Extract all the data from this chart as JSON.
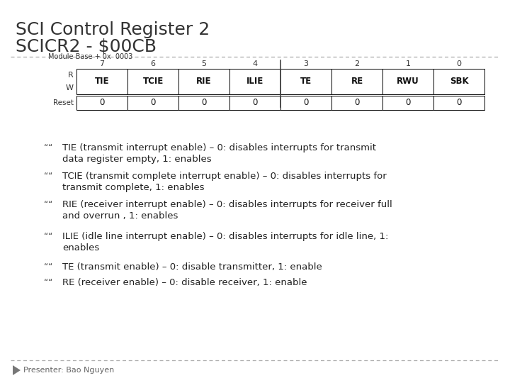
{
  "title_line1": "SCI Control Register 2",
  "title_line2": "SCICR2 - $00CB",
  "bg_color": "#ffffff",
  "title_color": "#333333",
  "register_label": "Module Base + 0x  0003",
  "bit_numbers": [
    "7",
    "6",
    "5",
    "4",
    "3",
    "2",
    "1",
    "0"
  ],
  "bit_fields": [
    "TIE",
    "TCIE",
    "RIE",
    "ILIE",
    "TE",
    "RE",
    "RWU",
    "SBK"
  ],
  "reset_values": [
    "0",
    "0",
    "0",
    "0",
    "0",
    "0",
    "0",
    "0"
  ],
  "bullet_lines": [
    [
      "TIE (transmit interrupt enable) – 0: disables interrupts for transmit",
      "data register empty, 1: enables"
    ],
    [
      "TCIE (transmit complete interrupt enable) – 0: disables interrupts for",
      "transmit complete, 1: enables"
    ],
    [
      "RIE (receiver interrupt enable) – 0: disables interrupts for receiver full",
      "and overrun , 1: enables"
    ],
    [
      "ILIE (idle line interrupt enable) – 0: disables interrupts for idle line, 1:",
      "enables"
    ],
    [
      "TE (transmit enable) – 0: disable transmitter, 1: enable"
    ],
    [
      "RE (receiver enable) – 0: disable receiver, 1: enable"
    ]
  ],
  "presenter": "Presenter: Bao Nguyen",
  "dashed_line_color": "#aaaaaa",
  "table_border_color": "#000000",
  "text_color": "#222222",
  "sep_line_color": "#444444"
}
